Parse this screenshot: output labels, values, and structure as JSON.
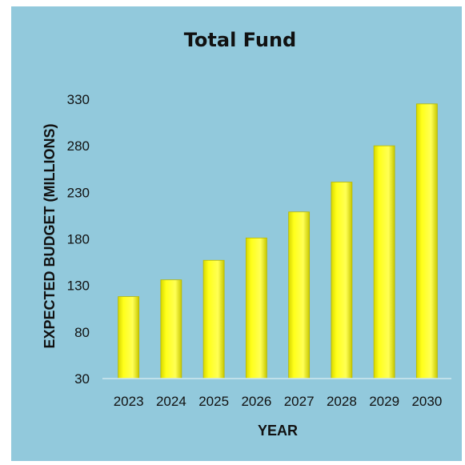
{
  "colors": {
    "background": "#92c9dc",
    "bar_fill": "#ffff1a",
    "bar_edge": "#b8b800",
    "axis_line": "#cfe7ee"
  },
  "chart_data": {
    "type": "bar",
    "title": "Total Fund",
    "xlabel": "YEAR",
    "ylabel": "EXPECTED BUDGET (MILLIONS)",
    "categories": [
      "2023",
      "2024",
      "2025",
      "2026",
      "2027",
      "2028",
      "2029",
      "2030"
    ],
    "values": [
      118,
      136,
      157,
      181,
      209,
      241,
      280,
      325
    ],
    "ylim": [
      30,
      330
    ],
    "yticks": [
      30,
      80,
      130,
      180,
      230,
      280,
      330
    ],
    "grid": false,
    "legend": "none"
  }
}
